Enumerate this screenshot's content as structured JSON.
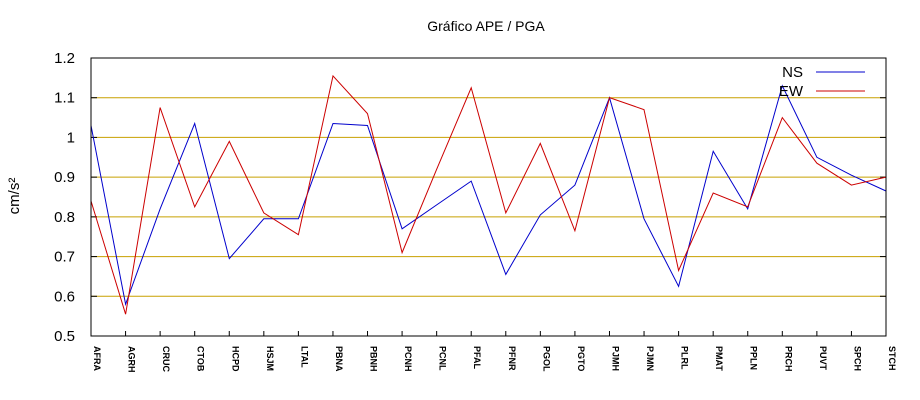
{
  "chart_data": {
    "type": "line",
    "title": "Gráfico  APE / PGA",
    "ylabel": "cm/s²",
    "xlabel": "",
    "ylim": [
      0.5,
      1.2
    ],
    "yticks": [
      0.5,
      0.6,
      0.7,
      0.8,
      0.9,
      1,
      1.1,
      1.2
    ],
    "ytick_labels": [
      "0.5",
      "0.6",
      "0.7",
      "0.8",
      "0.9",
      "1",
      "1.1",
      "1.2"
    ],
    "grid": "horizontal",
    "legend_position": "top-right",
    "categories": [
      "AFRA",
      "AGRH",
      "CRUC",
      "CTOB",
      "HCPD",
      "HSJM",
      "LTAL",
      "PBNA",
      "PBNH",
      "PCNH",
      "PCNL",
      "PFAL",
      "PFNR",
      "PGOL",
      "PGTO",
      "PJMH",
      "PJMN",
      "PLRL",
      "PMAT",
      "PPLN",
      "PRCH",
      "PUVT",
      "SPCH",
      "STCH"
    ],
    "series": [
      {
        "name": "NS",
        "color": "#0000cc",
        "values": [
          1.03,
          0.58,
          0.82,
          1.035,
          0.695,
          0.795,
          0.795,
          1.035,
          1.03,
          0.77,
          0.83,
          0.89,
          0.655,
          0.805,
          0.88,
          1.1,
          0.795,
          0.625,
          0.965,
          0.82,
          1.13,
          0.95,
          0.905,
          0.865
        ]
      },
      {
        "name": "EW",
        "color": "#cc0000",
        "values": [
          0.84,
          0.555,
          1.075,
          0.825,
          0.99,
          0.81,
          0.755,
          1.155,
          1.06,
          0.71,
          0.92,
          1.125,
          0.81,
          0.985,
          0.765,
          1.1,
          1.07,
          0.665,
          0.86,
          0.825,
          1.05,
          0.935,
          0.88,
          0.9
        ]
      }
    ]
  },
  "colors": {
    "grid": "#c8a000",
    "axis": "#000000",
    "background": "#ffffff"
  }
}
